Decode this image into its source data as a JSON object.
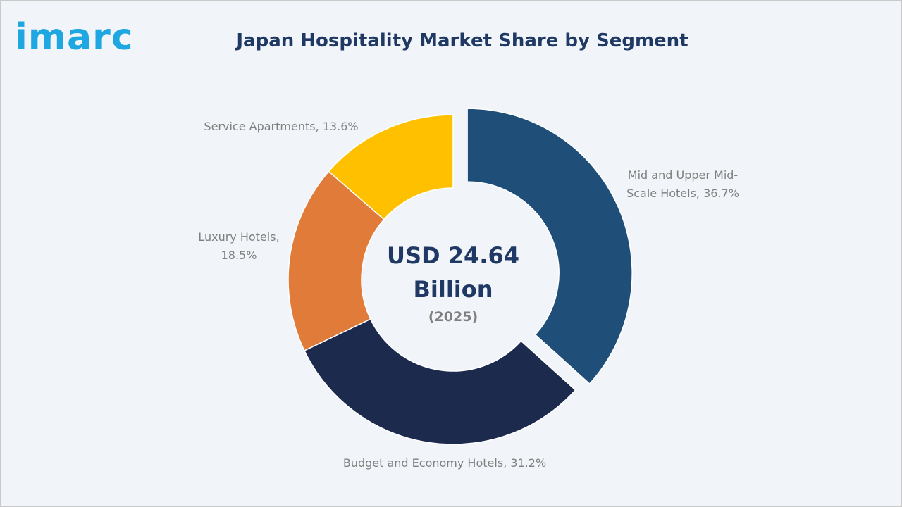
{
  "logo": "imarc",
  "chart_data": {
    "type": "donut",
    "title": "Japan Hospitality Market Share by Segment",
    "values": [
      36.7,
      31.2,
      18.5,
      13.6
    ],
    "value_labels": [
      "Mid and Upper Mid-Scale Hotels, 36.7%",
      "Budget and Economy Hotels, 31.2%",
      "Luxury Hotels, 18.5%",
      "Service Apartments, 13.6%"
    ],
    "colors": [
      "#1f4e79",
      "#1c2a4e",
      "#e07b39",
      "#ffc000"
    ],
    "exploded": [
      true,
      false,
      false,
      false
    ],
    "center_text": "USD 24.64 Billion",
    "center_subtext": "(2025)"
  }
}
